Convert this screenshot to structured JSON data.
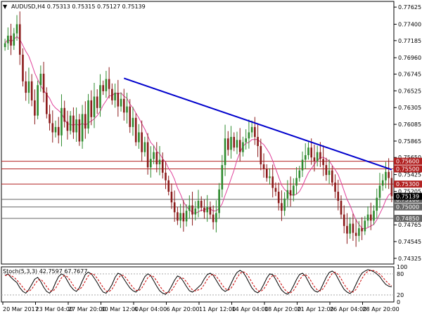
{
  "header": {
    "arrow": "▼",
    "text": "AUDUSD,H4  0.75313 0.75315 0.75127 0.75139"
  },
  "chart_data": {
    "type": "candlestick",
    "symbol": "AUDUSD",
    "timeframe": "H4",
    "ohlc_last": {
      "open": 0.75313,
      "high": 0.75315,
      "low": 0.75127,
      "close": 0.75139
    },
    "price_axis_labels": [
      "0.77625",
      "0.77400",
      "0.77185",
      "0.76960",
      "0.76745",
      "0.76525",
      "0.76305",
      "0.76085",
      "0.75865",
      "0.75650",
      "0.75425",
      "0.75205",
      "0.74985",
      "0.74765",
      "0.74545",
      "0.74325"
    ],
    "time_axis_labels": [
      "20 Mar 2017",
      "23 Mar 04:00",
      "27 Mar 20:00",
      "30 Mar 12:00",
      "4 Apr 04:00",
      "6 Apr 20:00",
      "11 Apr 12:00",
      "14 Apr 04:00",
      "18 Apr 20:00",
      "21 Apr 12:00",
      "26 Apr 04:00",
      "28 Apr 20:00"
    ],
    "ylim": [
      0.7425,
      0.777
    ],
    "closes": [
      0.7715,
      0.7725,
      0.7712,
      0.7728,
      0.774,
      0.77,
      0.7665,
      0.765,
      0.7665,
      0.764,
      0.762,
      0.766,
      0.7675,
      0.765,
      0.7622,
      0.761,
      0.7598,
      0.7605,
      0.7594,
      0.763,
      0.7612,
      0.76,
      0.762,
      0.7598,
      0.7615,
      0.7586,
      0.7622,
      0.7603,
      0.764,
      0.7618,
      0.7645,
      0.763,
      0.766,
      0.7652,
      0.7668,
      0.7655,
      0.764,
      0.765,
      0.7632,
      0.7642,
      0.7624,
      0.7632,
      0.7605,
      0.7617,
      0.7585,
      0.7598,
      0.7572,
      0.7585,
      0.7552,
      0.7563,
      0.7572,
      0.7556,
      0.7562,
      0.7545,
      0.7535,
      0.752,
      0.7506,
      0.7493,
      0.7482,
      0.7492,
      0.7481,
      0.7495,
      0.7502,
      0.749,
      0.7498,
      0.7508,
      0.7499,
      0.7493,
      0.75,
      0.749,
      0.748,
      0.7492,
      0.7523,
      0.7555,
      0.759,
      0.7575,
      0.7592,
      0.7578,
      0.7588,
      0.7572,
      0.7585,
      0.759,
      0.7598,
      0.7605,
      0.7592,
      0.758,
      0.7556,
      0.755,
      0.7538,
      0.754,
      0.7525,
      0.752,
      0.7505,
      0.7495,
      0.7511,
      0.7522,
      0.7515,
      0.7528,
      0.7538,
      0.7548,
      0.7562,
      0.7568,
      0.7578,
      0.7565,
      0.756,
      0.7572,
      0.7563,
      0.7555,
      0.7542,
      0.7548,
      0.7532,
      0.752,
      0.7508,
      0.749,
      0.7475,
      0.7465,
      0.7478,
      0.7466,
      0.7462,
      0.7472,
      0.7468,
      0.7482,
      0.749,
      0.7482,
      0.7495,
      0.7512,
      0.7528,
      0.7535,
      0.7546,
      0.7538,
      0.7514
    ],
    "ma_label": "MA(8)",
    "trendline": {
      "from": {
        "bar": 40,
        "price": 0.7669
      },
      "to": {
        "bar": 130,
        "price": 0.7549
      },
      "color": "#0000cc"
    },
    "support_resistance": [
      {
        "price": 0.756,
        "label": "0.75600",
        "color": "#b22222"
      },
      {
        "price": 0.755,
        "label": "0.75500",
        "color": "#b22222"
      },
      {
        "price": 0.753,
        "label": "0.75300",
        "color": "#b22222"
      },
      {
        "price": 0.751,
        "label": "0.75100",
        "color": "#666666"
      },
      {
        "price": 0.75,
        "label": "0.75000",
        "color": "#666666"
      },
      {
        "price": 0.7485,
        "label": "0.74850",
        "color": "#666666"
      }
    ],
    "current_price": {
      "price": 0.75139,
      "label": "0.75139"
    },
    "stochastic": {
      "label": "Stoch(5,3,3) 42.7597 67.7677",
      "main_last": 42.7597,
      "signal_last": 67.7677,
      "levels": [
        "100",
        "80",
        "20",
        "0"
      ],
      "k": [
        75,
        80,
        70,
        62,
        55,
        40,
        30,
        25,
        35,
        50,
        65,
        70,
        58,
        42,
        30,
        25,
        35,
        55,
        72,
        80,
        75,
        60,
        45,
        35,
        30,
        40,
        60,
        78,
        85,
        80,
        68,
        55,
        40,
        28,
        25,
        35,
        50,
        70,
        82,
        78,
        65,
        52,
        40,
        32,
        28,
        36,
        55,
        72,
        80,
        75,
        60,
        45,
        32,
        25,
        22,
        30,
        45,
        62,
        74,
        70,
        58,
        44,
        32,
        28,
        34,
        50,
        66,
        78,
        82,
        76,
        62,
        48,
        36,
        30,
        35,
        52,
        70,
        84,
        90,
        85,
        72,
        56,
        40,
        30,
        26,
        34,
        50,
        68,
        80,
        78,
        64,
        48,
        34,
        26,
        22,
        30,
        46,
        64,
        78,
        82,
        74,
        58,
        42,
        32,
        28,
        34,
        52,
        70,
        84,
        88,
        82,
        66,
        50,
        36,
        28,
        24,
        32,
        50,
        68,
        82,
        88,
        92,
        90,
        86,
        80,
        72,
        60,
        50,
        45,
        43
      ]
    },
    "colors": {
      "bull": "#2e8b2e",
      "bear": "#8b1a1a",
      "ma": "#e0409a",
      "stoch_main": "#000000",
      "stoch_signal": "#cc0000",
      "grid": "#aaaaaa"
    }
  }
}
